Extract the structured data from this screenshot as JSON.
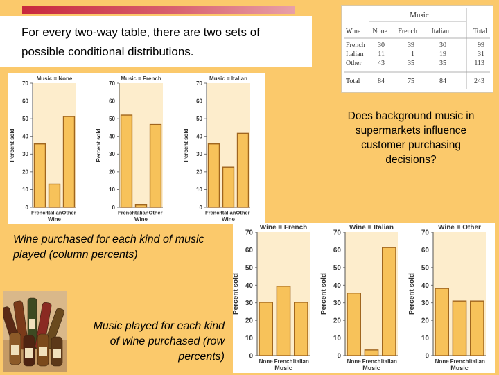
{
  "slide": {
    "intro": "For every two-way table, there are two sets of possible conditional distributions.",
    "question": "Does background music in supermarkets influence customer purchasing decisions?",
    "col_caption": "Wine purchased for each kind of music played (column percents)",
    "row_caption": "Music played for each kind of wine purchased (row percents)"
  },
  "colors": {
    "background": "#fbc96b",
    "bar_fill": "#f7c25a",
    "bar_stroke": "#a0651e",
    "panel_fill": "#fdedcc",
    "title_bar": "#c8283c"
  },
  "table": {
    "spanner": "Music",
    "headers": [
      "Wine",
      "None",
      "French",
      "Italian",
      "Total"
    ],
    "rows": [
      [
        "French",
        "30",
        "39",
        "30",
        "99"
      ],
      [
        "Italian",
        "11",
        "1",
        "19",
        "31"
      ],
      [
        "Other",
        "43",
        "35",
        "35",
        "113"
      ]
    ],
    "total_row": [
      "Total",
      "84",
      "75",
      "84",
      "243"
    ]
  },
  "chart_data": [
    {
      "type": "bar",
      "title": "Music = None",
      "categories": [
        "French",
        "Italian",
        "Other"
      ],
      "values": [
        35.7,
        13.1,
        51.2
      ],
      "xlabel": "Wine",
      "ylabel": "Percent sold",
      "ylim": [
        0,
        70
      ],
      "yticks": [
        0,
        10,
        20,
        30,
        40,
        50,
        60,
        70
      ]
    },
    {
      "type": "bar",
      "title": "Music = French",
      "categories": [
        "French",
        "Italian",
        "Other"
      ],
      "values": [
        52.0,
        1.3,
        46.7
      ],
      "xlabel": "Wine",
      "ylabel": "Percent sold",
      "ylim": [
        0,
        70
      ],
      "yticks": [
        0,
        10,
        20,
        30,
        40,
        50,
        60,
        70
      ]
    },
    {
      "type": "bar",
      "title": "Music = Italian",
      "categories": [
        "French",
        "Italian",
        "Other"
      ],
      "values": [
        35.7,
        22.6,
        41.7
      ],
      "xlabel": "Wine",
      "ylabel": "Percent sold",
      "ylim": [
        0,
        70
      ],
      "yticks": [
        0,
        10,
        20,
        30,
        40,
        50,
        60,
        70
      ]
    },
    {
      "type": "bar",
      "title": "Wine = French",
      "categories": [
        "None",
        "French",
        "Italian"
      ],
      "values": [
        30.3,
        39.4,
        30.3
      ],
      "xlabel": "Music",
      "ylabel": "Percent sold",
      "ylim": [
        0,
        70
      ],
      "yticks": [
        0,
        10,
        20,
        30,
        40,
        50,
        60,
        70
      ]
    },
    {
      "type": "bar",
      "title": "Wine = Italian",
      "categories": [
        "None",
        "French",
        "Italian"
      ],
      "values": [
        35.5,
        3.2,
        61.3
      ],
      "xlabel": "Music",
      "ylabel": "Percent sold",
      "ylim": [
        0,
        70
      ],
      "yticks": [
        0,
        10,
        20,
        30,
        40,
        50,
        60,
        70
      ]
    },
    {
      "type": "bar",
      "title": "Wine = Other",
      "categories": [
        "None",
        "French",
        "Italian"
      ],
      "values": [
        38.1,
        31.0,
        31.0
      ],
      "xlabel": "Music",
      "ylabel": "Percent sold",
      "ylim": [
        0,
        70
      ],
      "yticks": [
        0,
        10,
        20,
        30,
        40,
        50,
        60,
        70
      ]
    }
  ]
}
